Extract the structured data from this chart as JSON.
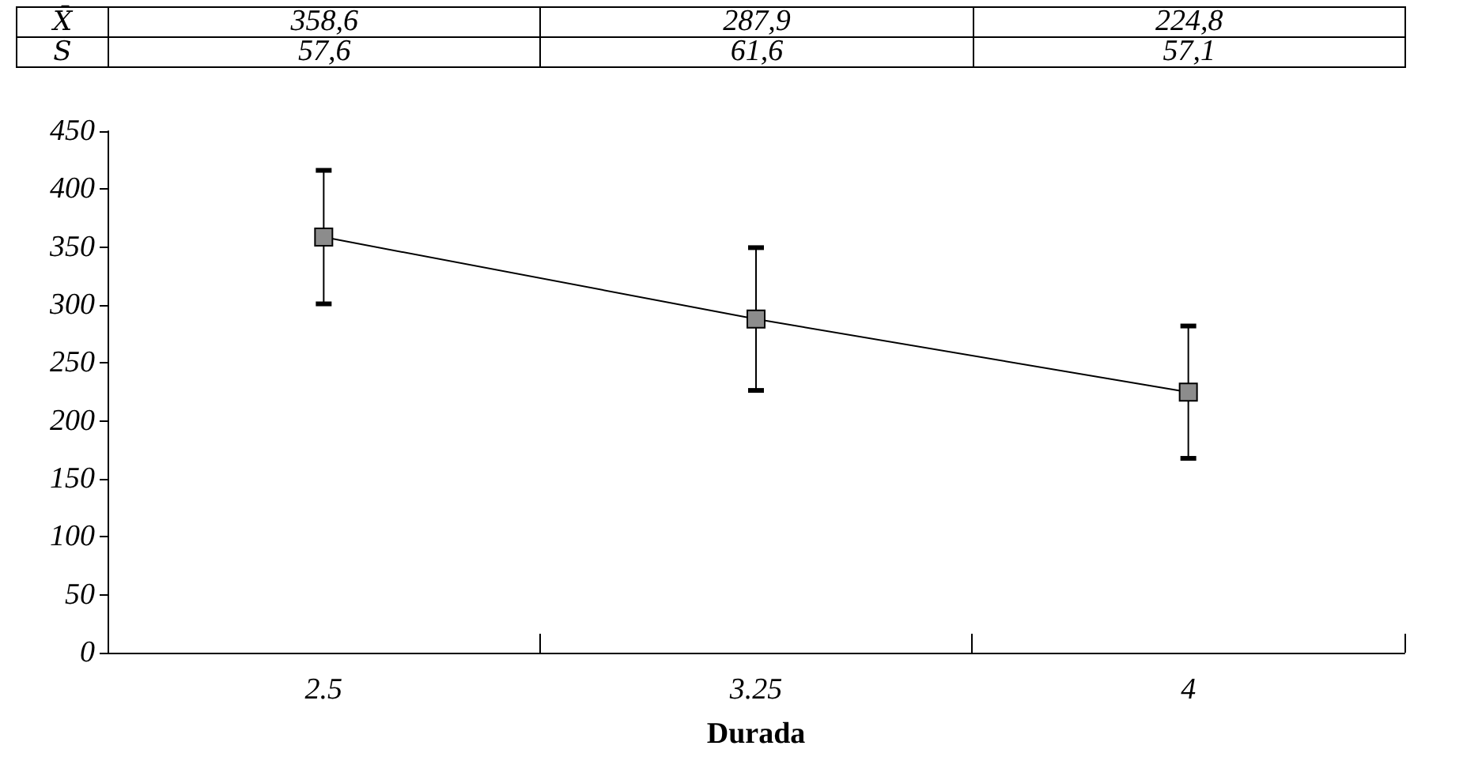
{
  "chart_data": {
    "type": "line",
    "xlabel": "Durada",
    "categories": [
      "2.5",
      "3.25",
      "4"
    ],
    "series": [
      {
        "name": "X̄",
        "color": "#000000",
        "values": [
          358.6,
          287.9,
          224.8
        ],
        "value_labels": [
          "358,6",
          "287,9",
          "224,8"
        ],
        "errors": [
          57.6,
          61.6,
          57.1
        ]
      }
    ],
    "annotations": [
      "S",
      "57,6",
      "61,6",
      "57,1"
    ],
    "ylim": [
      0,
      450
    ],
    "yticks": [
      0,
      50,
      100,
      150,
      200,
      250,
      300,
      350,
      400,
      450
    ],
    "marker": "square",
    "line_style": "solid"
  }
}
